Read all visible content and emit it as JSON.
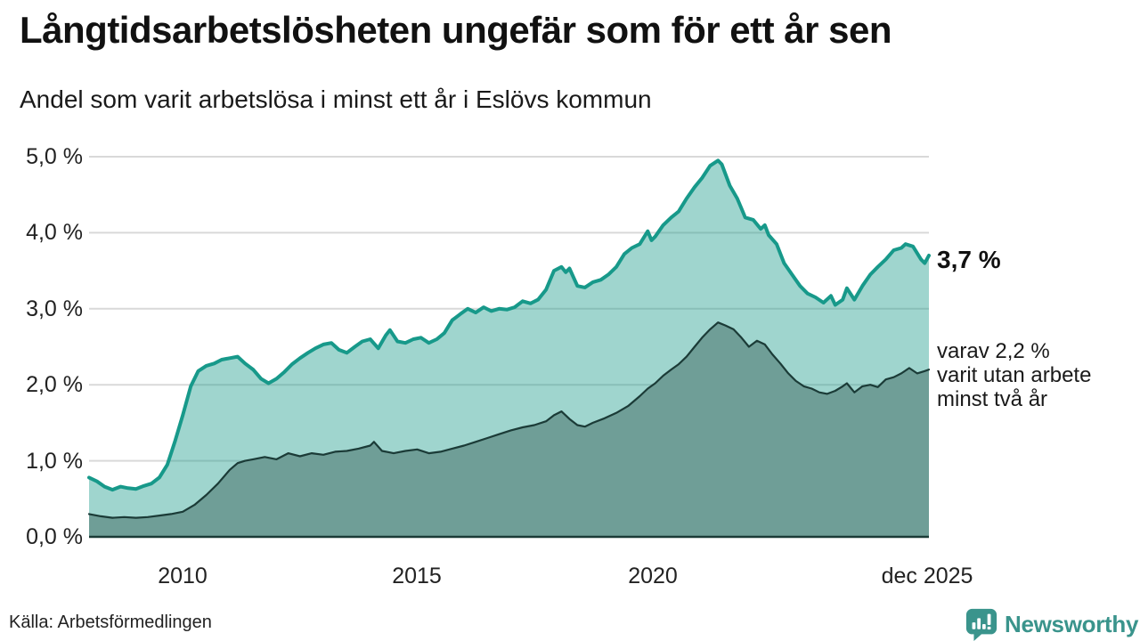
{
  "header": {
    "title": "Långtidsarbetslösheten ungefär som för ett år sen",
    "subtitle": "Andel som varit arbetslösa i minst ett år i Eslövs kommun"
  },
  "annotations": {
    "latest_total": "3,7 %",
    "secondary_lines": [
      "varav 2,2 %",
      "varit utan arbete",
      "minst två år"
    ]
  },
  "footer": {
    "source": "Källa: Arbetsförmedlingen",
    "brand": "Newsworthy",
    "brand_icon": "bar-chart-speech-bubble-icon"
  },
  "colors": {
    "accent_teal": "#17998a",
    "light_area_fill": "rgba(26,154,138,0.42)",
    "dark_area_fill": "#6f9e97",
    "dark_line": "#1b3b37",
    "grid": "#d9d9d9",
    "brand_teal": "#3a948c",
    "text": "#1a1a1a"
  },
  "chart_data": {
    "type": "area",
    "title": "Långtidsarbetslösheten ungefär som för ett år sen",
    "subtitle": "Andel som varit arbetslösa i minst ett år i Eslövs kommun",
    "grid": true,
    "x_range": [
      2008.0,
      2025.92
    ],
    "ylim": [
      0,
      5
    ],
    "y_ticks": [
      "5,0 %",
      "4,0 %",
      "3,0 %",
      "2,0 %",
      "1,0 %",
      "0,0 %"
    ],
    "y_tick_values": [
      5,
      4,
      3,
      2,
      1,
      0
    ],
    "x_ticks": [
      "2010",
      "2015",
      "2020",
      "dec 2025"
    ],
    "x_tick_values": [
      2010,
      2015,
      2020,
      2025.92
    ],
    "series": [
      {
        "name": "minst ett år",
        "latest_value": "3,7 %",
        "color": "#17998a",
        "fill": "rgba(26,154,138,0.42)",
        "line_width": 4,
        "points": [
          [
            2008.0,
            0.78
          ],
          [
            2008.17,
            0.73
          ],
          [
            2008.33,
            0.66
          ],
          [
            2008.5,
            0.62
          ],
          [
            2008.67,
            0.66
          ],
          [
            2008.83,
            0.64
          ],
          [
            2009.0,
            0.63
          ],
          [
            2009.17,
            0.67
          ],
          [
            2009.33,
            0.7
          ],
          [
            2009.5,
            0.78
          ],
          [
            2009.67,
            0.95
          ],
          [
            2009.83,
            1.25
          ],
          [
            2010.0,
            1.6
          ],
          [
            2010.17,
            1.98
          ],
          [
            2010.33,
            2.18
          ],
          [
            2010.5,
            2.25
          ],
          [
            2010.67,
            2.28
          ],
          [
            2010.83,
            2.33
          ],
          [
            2011.0,
            2.35
          ],
          [
            2011.17,
            2.37
          ],
          [
            2011.33,
            2.28
          ],
          [
            2011.5,
            2.2
          ],
          [
            2011.67,
            2.08
          ],
          [
            2011.83,
            2.02
          ],
          [
            2012.0,
            2.08
          ],
          [
            2012.17,
            2.17
          ],
          [
            2012.33,
            2.27
          ],
          [
            2012.5,
            2.35
          ],
          [
            2012.67,
            2.42
          ],
          [
            2012.83,
            2.48
          ],
          [
            2013.0,
            2.53
          ],
          [
            2013.17,
            2.55
          ],
          [
            2013.33,
            2.46
          ],
          [
            2013.5,
            2.42
          ],
          [
            2013.67,
            2.5
          ],
          [
            2013.83,
            2.57
          ],
          [
            2014.0,
            2.6
          ],
          [
            2014.17,
            2.48
          ],
          [
            2014.33,
            2.65
          ],
          [
            2014.42,
            2.72
          ],
          [
            2014.58,
            2.57
          ],
          [
            2014.75,
            2.55
          ],
          [
            2014.92,
            2.6
          ],
          [
            2015.08,
            2.62
          ],
          [
            2015.25,
            2.55
          ],
          [
            2015.42,
            2.6
          ],
          [
            2015.58,
            2.68
          ],
          [
            2015.75,
            2.85
          ],
          [
            2015.92,
            2.93
          ],
          [
            2016.08,
            3.0
          ],
          [
            2016.25,
            2.95
          ],
          [
            2016.42,
            3.02
          ],
          [
            2016.58,
            2.97
          ],
          [
            2016.75,
            3.0
          ],
          [
            2016.92,
            2.99
          ],
          [
            2017.08,
            3.02
          ],
          [
            2017.25,
            3.1
          ],
          [
            2017.42,
            3.07
          ],
          [
            2017.58,
            3.12
          ],
          [
            2017.75,
            3.25
          ],
          [
            2017.92,
            3.5
          ],
          [
            2018.08,
            3.55
          ],
          [
            2018.17,
            3.48
          ],
          [
            2018.25,
            3.53
          ],
          [
            2018.42,
            3.3
          ],
          [
            2018.58,
            3.28
          ],
          [
            2018.75,
            3.35
          ],
          [
            2018.92,
            3.38
          ],
          [
            2019.08,
            3.45
          ],
          [
            2019.25,
            3.55
          ],
          [
            2019.42,
            3.72
          ],
          [
            2019.58,
            3.8
          ],
          [
            2019.75,
            3.85
          ],
          [
            2019.92,
            4.02
          ],
          [
            2020.0,
            3.9
          ],
          [
            2020.08,
            3.95
          ],
          [
            2020.25,
            4.1
          ],
          [
            2020.42,
            4.2
          ],
          [
            2020.58,
            4.28
          ],
          [
            2020.75,
            4.45
          ],
          [
            2020.92,
            4.6
          ],
          [
            2021.08,
            4.72
          ],
          [
            2021.25,
            4.88
          ],
          [
            2021.42,
            4.95
          ],
          [
            2021.5,
            4.9
          ],
          [
            2021.67,
            4.62
          ],
          [
            2021.83,
            4.45
          ],
          [
            2021.92,
            4.32
          ],
          [
            2022.0,
            4.2
          ],
          [
            2022.17,
            4.17
          ],
          [
            2022.33,
            4.05
          ],
          [
            2022.42,
            4.1
          ],
          [
            2022.5,
            3.97
          ],
          [
            2022.67,
            3.85
          ],
          [
            2022.83,
            3.6
          ],
          [
            2023.0,
            3.45
          ],
          [
            2023.17,
            3.3
          ],
          [
            2023.33,
            3.2
          ],
          [
            2023.5,
            3.15
          ],
          [
            2023.67,
            3.08
          ],
          [
            2023.83,
            3.17
          ],
          [
            2023.92,
            3.05
          ],
          [
            2024.08,
            3.12
          ],
          [
            2024.17,
            3.27
          ],
          [
            2024.33,
            3.12
          ],
          [
            2024.5,
            3.3
          ],
          [
            2024.67,
            3.45
          ],
          [
            2024.83,
            3.55
          ],
          [
            2025.0,
            3.65
          ],
          [
            2025.17,
            3.77
          ],
          [
            2025.33,
            3.8
          ],
          [
            2025.42,
            3.85
          ],
          [
            2025.58,
            3.82
          ],
          [
            2025.75,
            3.65
          ],
          [
            2025.83,
            3.6
          ],
          [
            2025.92,
            3.7
          ]
        ]
      },
      {
        "name": "minst två år",
        "latest_value": "2,2 %",
        "color": "#1b3b37",
        "fill": "#6f9e97",
        "line_width": 2.2,
        "points": [
          [
            2008.0,
            0.3
          ],
          [
            2008.25,
            0.27
          ],
          [
            2008.5,
            0.25
          ],
          [
            2008.75,
            0.26
          ],
          [
            2009.0,
            0.25
          ],
          [
            2009.25,
            0.26
          ],
          [
            2009.5,
            0.28
          ],
          [
            2009.75,
            0.3
          ],
          [
            2010.0,
            0.33
          ],
          [
            2010.25,
            0.42
          ],
          [
            2010.5,
            0.55
          ],
          [
            2010.75,
            0.7
          ],
          [
            2011.0,
            0.88
          ],
          [
            2011.17,
            0.97
          ],
          [
            2011.33,
            1.0
          ],
          [
            2011.5,
            1.02
          ],
          [
            2011.75,
            1.05
          ],
          [
            2012.0,
            1.02
          ],
          [
            2012.25,
            1.1
          ],
          [
            2012.5,
            1.06
          ],
          [
            2012.75,
            1.1
          ],
          [
            2013.0,
            1.08
          ],
          [
            2013.25,
            1.12
          ],
          [
            2013.5,
            1.13
          ],
          [
            2013.75,
            1.16
          ],
          [
            2014.0,
            1.2
          ],
          [
            2014.08,
            1.25
          ],
          [
            2014.25,
            1.13
          ],
          [
            2014.5,
            1.1
          ],
          [
            2014.75,
            1.13
          ],
          [
            2015.0,
            1.15
          ],
          [
            2015.25,
            1.1
          ],
          [
            2015.5,
            1.12
          ],
          [
            2015.75,
            1.16
          ],
          [
            2016.0,
            1.2
          ],
          [
            2016.25,
            1.25
          ],
          [
            2016.5,
            1.3
          ],
          [
            2016.75,
            1.35
          ],
          [
            2017.0,
            1.4
          ],
          [
            2017.25,
            1.44
          ],
          [
            2017.5,
            1.47
          ],
          [
            2017.75,
            1.52
          ],
          [
            2017.92,
            1.6
          ],
          [
            2018.08,
            1.65
          ],
          [
            2018.25,
            1.55
          ],
          [
            2018.42,
            1.47
          ],
          [
            2018.58,
            1.45
          ],
          [
            2018.75,
            1.5
          ],
          [
            2019.0,
            1.56
          ],
          [
            2019.25,
            1.63
          ],
          [
            2019.5,
            1.72
          ],
          [
            2019.75,
            1.85
          ],
          [
            2019.92,
            1.95
          ],
          [
            2020.08,
            2.02
          ],
          [
            2020.25,
            2.12
          ],
          [
            2020.42,
            2.2
          ],
          [
            2020.58,
            2.27
          ],
          [
            2020.75,
            2.37
          ],
          [
            2020.92,
            2.5
          ],
          [
            2021.08,
            2.62
          ],
          [
            2021.25,
            2.73
          ],
          [
            2021.42,
            2.82
          ],
          [
            2021.58,
            2.78
          ],
          [
            2021.75,
            2.73
          ],
          [
            2021.92,
            2.62
          ],
          [
            2022.08,
            2.5
          ],
          [
            2022.25,
            2.58
          ],
          [
            2022.42,
            2.53
          ],
          [
            2022.58,
            2.4
          ],
          [
            2022.75,
            2.28
          ],
          [
            2022.92,
            2.15
          ],
          [
            2023.08,
            2.05
          ],
          [
            2023.25,
            1.98
          ],
          [
            2023.42,
            1.95
          ],
          [
            2023.58,
            1.9
          ],
          [
            2023.75,
            1.88
          ],
          [
            2023.92,
            1.92
          ],
          [
            2024.08,
            1.98
          ],
          [
            2024.17,
            2.02
          ],
          [
            2024.33,
            1.9
          ],
          [
            2024.5,
            1.98
          ],
          [
            2024.67,
            2.0
          ],
          [
            2024.83,
            1.97
          ],
          [
            2025.0,
            2.07
          ],
          [
            2025.17,
            2.1
          ],
          [
            2025.33,
            2.15
          ],
          [
            2025.5,
            2.22
          ],
          [
            2025.67,
            2.15
          ],
          [
            2025.83,
            2.18
          ],
          [
            2025.92,
            2.2
          ]
        ]
      }
    ]
  }
}
